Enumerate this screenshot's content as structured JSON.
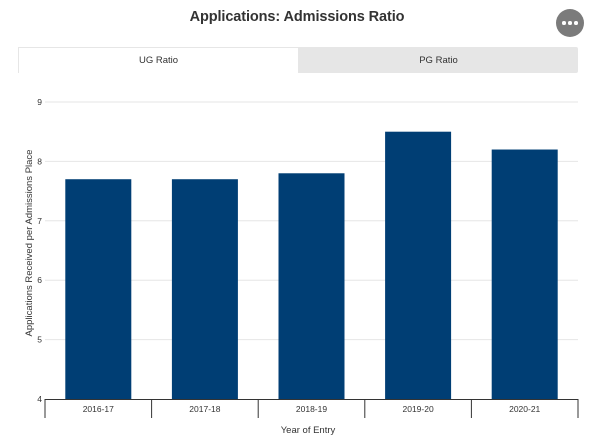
{
  "header": {
    "title": "Applications: Admissions Ratio"
  },
  "menu": {
    "icon": "more-horizontal-icon"
  },
  "tabs": [
    {
      "label": "UG Ratio",
      "active": true
    },
    {
      "label": "PG Ratio",
      "active": false
    }
  ],
  "colors": {
    "bar": "#003e74",
    "grid": "#e6e6e6",
    "axis": "#333333"
  },
  "chart_data": {
    "type": "bar",
    "title": "Applications: Admissions Ratio",
    "categories": [
      "2016-17",
      "2017-18",
      "2018-19",
      "2019-20",
      "2020-21"
    ],
    "values": [
      7.7,
      7.7,
      7.8,
      8.5,
      8.2
    ],
    "xlabel": "Year of Entry",
    "ylabel": "Applications Received per Admissions Place",
    "ylim": [
      4,
      9
    ],
    "yticks": [
      4,
      5,
      6,
      7,
      8,
      9
    ],
    "grid": true,
    "legend": "none"
  }
}
